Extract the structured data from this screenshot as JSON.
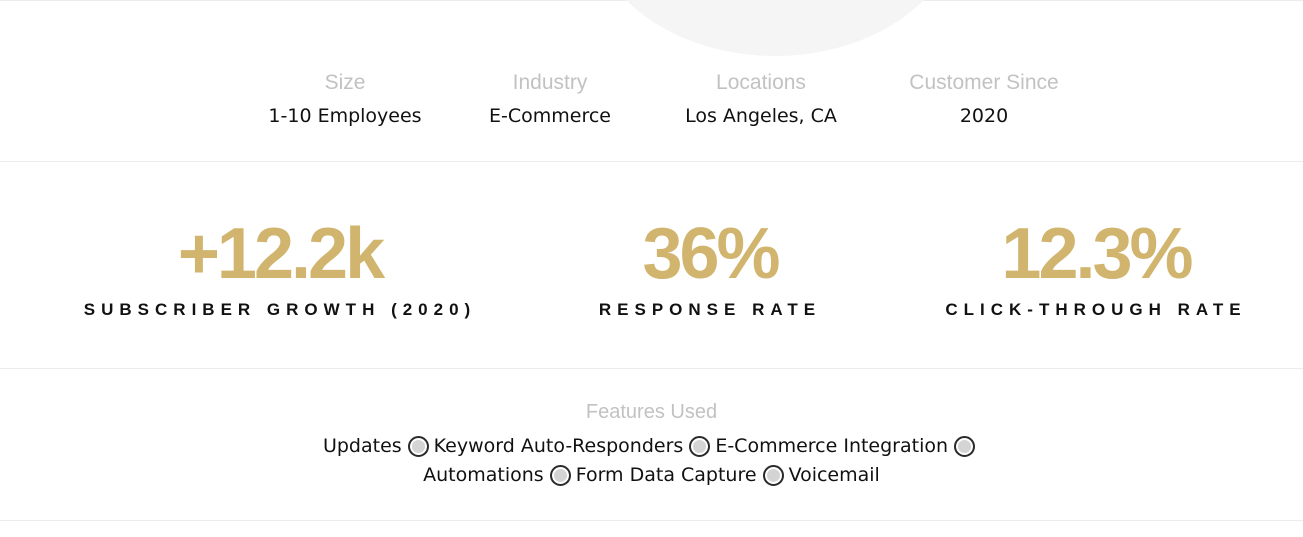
{
  "details": [
    {
      "label": "Size",
      "value": "1-10 Employees"
    },
    {
      "label": "Industry",
      "value": "E-Commerce"
    },
    {
      "label": "Locations",
      "value": "Los Angeles, CA"
    },
    {
      "label": "Customer Since",
      "value": "2020"
    }
  ],
  "stats": [
    {
      "value": "+12.2k",
      "caption": "SUBSCRIBER GROWTH (2020)"
    },
    {
      "value": "36%",
      "caption": "RESPONSE RATE"
    },
    {
      "value": "12.3%",
      "caption": "CLICK-THROUGH RATE"
    }
  ],
  "features": {
    "title": "Features Used",
    "items": [
      "Updates",
      "Keyword Auto-Responders",
      "E-Commerce Integration",
      "Automations",
      "Form Data Capture",
      "Voicemail"
    ]
  },
  "colors": {
    "accent": "#d1b56e",
    "muted_label": "#c2c2c2",
    "text": "#111111",
    "divider": "#ececec"
  },
  "icons": {
    "separator": "radio-circle-icon"
  }
}
